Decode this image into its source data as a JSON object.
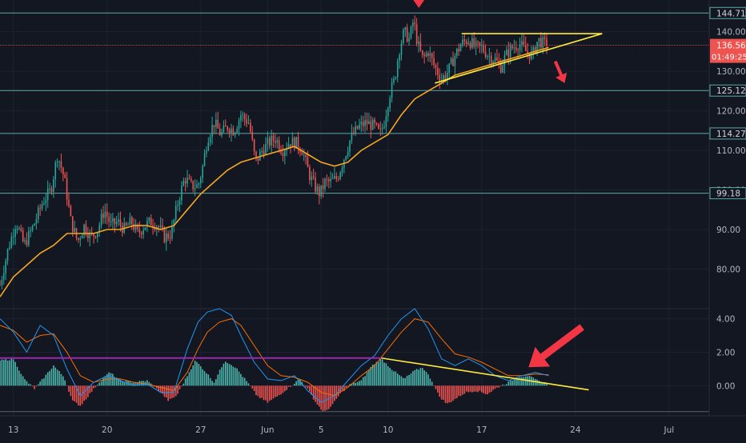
{
  "chart_data": [
    {
      "type": "candlestick",
      "panel": "price",
      "ylim": [
        70,
        148
      ],
      "y_ticks": [
        "80.00",
        "90.00",
        "100.00",
        "110.00",
        "120.00",
        "130.00",
        "140.00"
      ],
      "y_tick_values": [
        80,
        90,
        100,
        110,
        120,
        130,
        140
      ],
      "x_ticks": [
        "13",
        "20",
        "27",
        "Jun",
        "5",
        "10",
        "17",
        "24",
        "Jul"
      ],
      "x_tick_days": [
        13,
        20,
        27,
        32,
        36,
        41,
        48,
        55,
        62
      ],
      "x_range_days": [
        12,
        65
      ],
      "horizontal_levels": [
        {
          "value": 144.71,
          "label": "144.71"
        },
        {
          "value": 125.12,
          "label": "125.12"
        },
        {
          "value": 114.27,
          "label": "114.27"
        },
        {
          "value": 99.18,
          "label": "99.18"
        }
      ],
      "last_price": {
        "value": 136.56,
        "label": "136.56",
        "countdown": "01:49:25",
        "color": "#ef5350"
      },
      "moving_average_color": "#f5a623",
      "trendline_color": "#ffeb3b",
      "arrow_color": "#f23645",
      "up_color": "#26a69a",
      "down_color": "#ef5350",
      "close_path": [
        [
          12.0,
          76
        ],
        [
          12.6,
          85
        ],
        [
          13.2,
          92
        ],
        [
          13.8,
          86
        ],
        [
          14.5,
          91
        ],
        [
          15.2,
          97
        ],
        [
          15.8,
          100
        ],
        [
          16.3,
          109
        ],
        [
          16.8,
          103
        ],
        [
          17.3,
          92
        ],
        [
          17.8,
          87
        ],
        [
          18.3,
          91
        ],
        [
          18.8,
          88
        ],
        [
          19.3,
          90
        ],
        [
          19.8,
          95
        ],
        [
          20.3,
          91
        ],
        [
          20.8,
          92
        ],
        [
          21.3,
          90
        ],
        [
          21.8,
          92
        ],
        [
          22.3,
          89
        ],
        [
          22.8,
          91
        ],
        [
          23.3,
          92
        ],
        [
          23.8,
          91
        ],
        [
          24.3,
          88
        ],
        [
          24.8,
          89
        ],
        [
          25.3,
          97
        ],
        [
          25.8,
          103
        ],
        [
          26.3,
          101
        ],
        [
          26.8,
          101
        ],
        [
          27.1,
          105
        ],
        [
          27.5,
          113
        ],
        [
          28.0,
          117
        ],
        [
          28.5,
          114
        ],
        [
          29.0,
          116
        ],
        [
          29.5,
          115
        ],
        [
          30.0,
          119
        ],
        [
          30.6,
          117
        ],
        [
          31.1,
          107
        ],
        [
          31.6,
          110
        ],
        [
          32.1,
          112
        ],
        [
          32.6,
          113
        ],
        [
          33.1,
          110
        ],
        [
          33.6,
          112
        ],
        [
          34.1,
          112
        ],
        [
          34.6,
          110
        ],
        [
          35.1,
          104
        ],
        [
          35.5,
          101
        ],
        [
          35.9,
          99
        ],
        [
          36.3,
          102
        ],
        [
          36.7,
          102
        ],
        [
          37.2,
          103
        ],
        [
          37.7,
          108
        ],
        [
          38.2,
          113
        ],
        [
          38.8,
          116
        ],
        [
          39.4,
          117
        ],
        [
          40.0,
          116
        ],
        [
          40.4,
          114
        ],
        [
          40.7,
          117
        ],
        [
          41.1,
          124
        ],
        [
          41.5,
          128
        ],
        [
          41.8,
          135
        ],
        [
          42.2,
          140
        ],
        [
          42.6,
          138
        ],
        [
          42.9,
          143
        ],
        [
          43.2,
          137
        ],
        [
          43.6,
          133
        ],
        [
          44.0,
          135
        ],
        [
          44.5,
          131
        ],
        [
          45.0,
          128
        ],
        [
          45.5,
          130
        ],
        [
          46.0,
          134
        ],
        [
          46.5,
          137
        ],
        [
          47.0,
          138
        ],
        [
          47.5,
          136
        ],
        [
          48.0,
          136
        ],
        [
          48.5,
          134
        ],
        [
          49.0,
          133
        ],
        [
          49.4,
          131
        ],
        [
          49.8,
          134
        ],
        [
          50.3,
          136
        ],
        [
          50.8,
          137
        ],
        [
          51.3,
          135
        ],
        [
          51.8,
          134
        ],
        [
          52.2,
          138
        ],
        [
          52.6,
          137
        ],
        [
          53.0,
          136.56
        ]
      ],
      "moving_average": [
        [
          12.0,
          73
        ],
        [
          13.0,
          78
        ],
        [
          14.0,
          81
        ],
        [
          15.0,
          84
        ],
        [
          16.0,
          86
        ],
        [
          17.0,
          89
        ],
        [
          18.0,
          89
        ],
        [
          19.0,
          89
        ],
        [
          20.0,
          90
        ],
        [
          21.0,
          90
        ],
        [
          22.0,
          91
        ],
        [
          23.0,
          91
        ],
        [
          24.0,
          90
        ],
        [
          25.0,
          91
        ],
        [
          26.0,
          95
        ],
        [
          27.0,
          99
        ],
        [
          28.0,
          102
        ],
        [
          29.0,
          105
        ],
        [
          30.0,
          107
        ],
        [
          31.0,
          108
        ],
        [
          32.0,
          109
        ],
        [
          33.0,
          110
        ],
        [
          34.0,
          111
        ],
        [
          35.0,
          109
        ],
        [
          36.0,
          107
        ],
        [
          37.0,
          106
        ],
        [
          38.0,
          107
        ],
        [
          39.0,
          110
        ],
        [
          40.0,
          112
        ],
        [
          41.0,
          114
        ],
        [
          42.0,
          119
        ],
        [
          43.0,
          123
        ],
        [
          44.0,
          125
        ],
        [
          45.0,
          127
        ],
        [
          46.0,
          129
        ],
        [
          47.0,
          130
        ],
        [
          48.0,
          131
        ],
        [
          49.0,
          132
        ],
        [
          50.0,
          133
        ],
        [
          51.0,
          134
        ],
        [
          52.0,
          135
        ],
        [
          53.0,
          136
        ]
      ],
      "triangle_top": {
        "x1": 46.5,
        "y1": 139.5,
        "x2": 57.0,
        "y2": 139.5
      },
      "triangle_bottom": {
        "x1": 44.5,
        "y1": 127.0,
        "x2": 57.0,
        "y2": 139.5
      },
      "arrows": [
        {
          "x1": 43.3,
          "y1": 150.0,
          "x2": 43.3,
          "y2": 146.0
        },
        {
          "x1": 53.5,
          "y1": 132.5,
          "x2": 54.2,
          "y2": 127.0
        }
      ]
    },
    {
      "type": "macd",
      "panel": "oscillator",
      "ylim": [
        -1.8,
        4.6
      ],
      "y_ticks": [
        "4.00",
        "2.00",
        "0.00"
      ],
      "y_tick_values": [
        4,
        2,
        0
      ],
      "zero_level": 0,
      "histogram_up_color": "#4db6ac",
      "histogram_down_color": "#ef5350",
      "macd_color": "#2196f3",
      "signal_color": "#ff6d00",
      "horizontal_line": {
        "value": 1.65,
        "x1": 12.0,
        "x2": 40.5,
        "color": "#9c27b0"
      },
      "divergence_line": {
        "x1": 40.5,
        "y1": 1.65,
        "x2": 56.0,
        "y2": -0.25,
        "color": "#ffeb3b"
      },
      "arrow": {
        "x1": 55.5,
        "y1": 3.5,
        "x2": 51.5,
        "y2": 1.1,
        "color": "#f23645"
      },
      "histogram_wave": [
        [
          12.0,
          1.5
        ],
        [
          13.0,
          1.6
        ],
        [
          13.8,
          0.4
        ],
        [
          14.6,
          -0.2
        ],
        [
          15.4,
          0.6
        ],
        [
          16.0,
          1.2
        ],
        [
          16.8,
          0.5
        ],
        [
          17.4,
          -0.9
        ],
        [
          18.0,
          -1.2
        ],
        [
          18.6,
          -0.6
        ],
        [
          19.4,
          0.2
        ],
        [
          20.2,
          0.8
        ],
        [
          21.0,
          0.3
        ],
        [
          22.0,
          0.2
        ],
        [
          23.0,
          0.3
        ],
        [
          24.0,
          -0.4
        ],
        [
          24.6,
          -0.9
        ],
        [
          25.2,
          -0.6
        ],
        [
          25.8,
          0.3
        ],
        [
          26.6,
          1.5
        ],
        [
          27.4,
          0.8
        ],
        [
          28.0,
          0.2
        ],
        [
          28.8,
          1.5
        ],
        [
          29.6,
          1.1
        ],
        [
          30.4,
          0.3
        ],
        [
          31.2,
          -0.6
        ],
        [
          32.0,
          -1.0
        ],
        [
          32.8,
          -0.6
        ],
        [
          33.6,
          -0.1
        ],
        [
          34.4,
          0.4
        ],
        [
          35.0,
          -0.2
        ],
        [
          35.6,
          -1.0
        ],
        [
          36.2,
          -1.6
        ],
        [
          36.8,
          -1.2
        ],
        [
          37.4,
          -0.5
        ],
        [
          38.2,
          0.1
        ],
        [
          39.0,
          0.3
        ],
        [
          39.8,
          1.2
        ],
        [
          40.5,
          1.6
        ],
        [
          41.4,
          0.9
        ],
        [
          42.2,
          0.4
        ],
        [
          43.0,
          0.9
        ],
        [
          43.6,
          1.1
        ],
        [
          44.2,
          0.4
        ],
        [
          44.8,
          -0.6
        ],
        [
          45.4,
          -1.1
        ],
        [
          46.2,
          -0.7
        ],
        [
          46.8,
          -0.4
        ],
        [
          47.6,
          -0.3
        ],
        [
          48.4,
          -0.5
        ],
        [
          49.2,
          -0.1
        ],
        [
          50.0,
          0.2
        ],
        [
          50.6,
          0.5
        ],
        [
          51.4,
          0.6
        ],
        [
          52.2,
          0.3
        ],
        [
          53.0,
          0.1
        ]
      ],
      "macd_wave": [
        [
          12.0,
          4.0
        ],
        [
          13.0,
          3.2
        ],
        [
          14.0,
          2.0
        ],
        [
          15.0,
          3.6
        ],
        [
          16.0,
          3.0
        ],
        [
          17.0,
          1.0
        ],
        [
          18.0,
          -0.6
        ],
        [
          19.0,
          0.2
        ],
        [
          20.0,
          0.6
        ],
        [
          21.0,
          0.3
        ],
        [
          22.0,
          0.0
        ],
        [
          23.0,
          0.1
        ],
        [
          24.0,
          -0.4
        ],
        [
          25.0,
          -0.4
        ],
        [
          26.0,
          2.2
        ],
        [
          26.8,
          3.8
        ],
        [
          27.5,
          4.4
        ],
        [
          28.4,
          4.6
        ],
        [
          29.3,
          4.2
        ],
        [
          30.0,
          3.0
        ],
        [
          31.0,
          1.4
        ],
        [
          32.0,
          0.4
        ],
        [
          33.0,
          0.3
        ],
        [
          34.0,
          0.6
        ],
        [
          35.0,
          -0.3
        ],
        [
          36.0,
          -1.0
        ],
        [
          37.0,
          -0.6
        ],
        [
          38.0,
          0.3
        ],
        [
          39.0,
          1.2
        ],
        [
          40.0,
          1.8
        ],
        [
          41.0,
          3.0
        ],
        [
          42.0,
          4.0
        ],
        [
          43.0,
          4.6
        ],
        [
          44.0,
          3.4
        ],
        [
          45.0,
          1.6
        ],
        [
          46.0,
          1.2
        ],
        [
          47.0,
          1.6
        ],
        [
          48.0,
          1.2
        ],
        [
          49.0,
          0.6
        ],
        [
          50.0,
          0.3
        ],
        [
          51.0,
          0.6
        ],
        [
          52.0,
          0.8
        ],
        [
          53.0,
          0.6
        ]
      ],
      "signal_wave": [
        [
          12.0,
          3.6
        ],
        [
          13.0,
          3.3
        ],
        [
          14.0,
          2.6
        ],
        [
          15.0,
          3.0
        ],
        [
          16.0,
          3.1
        ],
        [
          17.0,
          2.0
        ],
        [
          18.0,
          0.6
        ],
        [
          19.0,
          0.2
        ],
        [
          20.0,
          0.4
        ],
        [
          21.0,
          0.4
        ],
        [
          22.0,
          0.2
        ],
        [
          23.0,
          0.1
        ],
        [
          24.0,
          -0.1
        ],
        [
          25.0,
          -0.3
        ],
        [
          26.0,
          0.8
        ],
        [
          26.8,
          2.2
        ],
        [
          27.5,
          3.2
        ],
        [
          28.4,
          3.8
        ],
        [
          29.3,
          4.0
        ],
        [
          30.0,
          3.6
        ],
        [
          31.0,
          2.4
        ],
        [
          32.0,
          1.2
        ],
        [
          33.0,
          0.6
        ],
        [
          34.0,
          0.5
        ],
        [
          35.0,
          0.2
        ],
        [
          36.0,
          -0.4
        ],
        [
          37.0,
          -0.6
        ],
        [
          38.0,
          -0.1
        ],
        [
          39.0,
          0.6
        ],
        [
          40.0,
          1.2
        ],
        [
          41.0,
          2.2
        ],
        [
          42.0,
          3.2
        ],
        [
          43.0,
          4.0
        ],
        [
          44.0,
          3.8
        ],
        [
          45.0,
          2.8
        ],
        [
          46.0,
          1.9
        ],
        [
          47.0,
          1.7
        ],
        [
          48.0,
          1.4
        ],
        [
          49.0,
          1.0
        ],
        [
          50.0,
          0.6
        ],
        [
          51.0,
          0.6
        ],
        [
          52.0,
          0.7
        ],
        [
          53.0,
          0.65
        ]
      ]
    }
  ]
}
